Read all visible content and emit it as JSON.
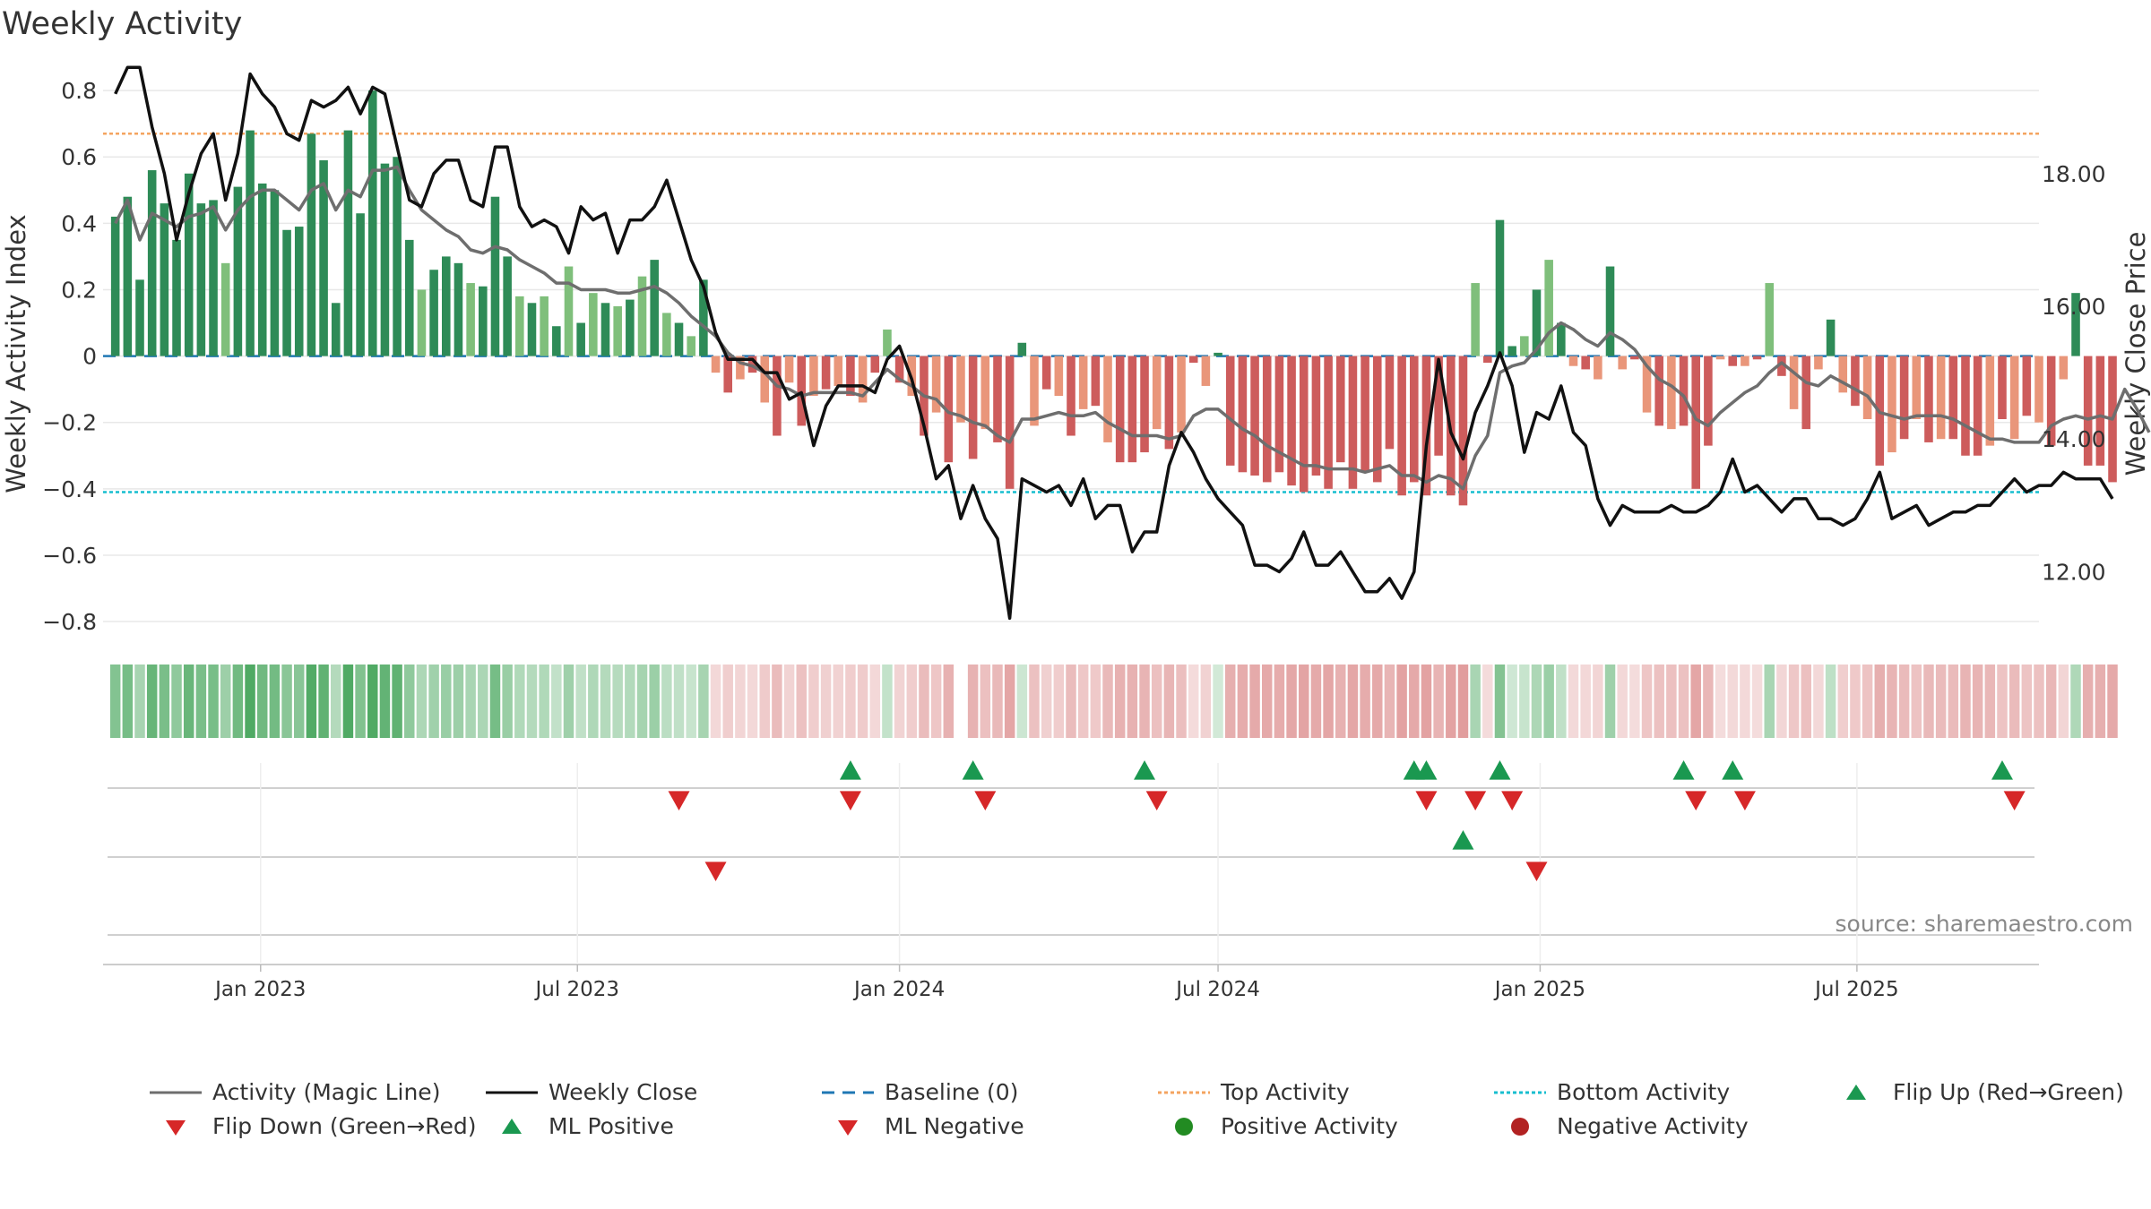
{
  "chart_data": {
    "type": "bar",
    "title": "Weekly Activity",
    "ylabel": "Weekly Activity Index",
    "y2label": "Weekly Close Price",
    "ylim": [
      -0.87,
      0.83
    ],
    "y2lim": [
      10.9,
      19.4
    ],
    "yticks": [
      0.8,
      0.6,
      0.4,
      0.2,
      0,
      -0.2,
      -0.4,
      -0.6,
      -0.8
    ],
    "ytick_labels": [
      "0.8",
      "0.6",
      "0.4",
      "0.2",
      "0",
      "−0.2",
      "−0.4",
      "−0.6",
      "−0.8"
    ],
    "y2ticks": [
      18,
      16,
      14,
      12
    ],
    "y2tick_labels": [
      "18.00",
      "16.00",
      "14.00",
      "12.00"
    ],
    "x_start": "2022-10-03",
    "x_end": "2025-10-13",
    "xticks": [
      {
        "date": "2023-01-01",
        "label": "Jan 2023"
      },
      {
        "date": "2023-07-01",
        "label": "Jul 2023"
      },
      {
        "date": "2024-01-01",
        "label": "Jan 2024"
      },
      {
        "date": "2024-07-01",
        "label": "Jul 2024"
      },
      {
        "date": "2025-01-01",
        "label": "Jan 2025"
      },
      {
        "date": "2025-07-01",
        "label": "Jul 2025"
      }
    ],
    "top_activity": 0.67,
    "bottom_activity": -0.41,
    "baseline": 0,
    "first_week": "2022-10-10",
    "activity": [
      0.42,
      0.48,
      0.23,
      0.56,
      0.46,
      0.35,
      0.55,
      0.46,
      0.47,
      0.28,
      0.51,
      0.68,
      0.52,
      0.5,
      0.38,
      0.39,
      0.67,
      0.59,
      0.16,
      0.68,
      0.43,
      0.8,
      0.58,
      0.6,
      0.35,
      0.2,
      0.26,
      0.3,
      0.28,
      0.22,
      0.21,
      0.48,
      0.3,
      0.18,
      0.16,
      0.18,
      0.09,
      0.27,
      0.1,
      0.19,
      0.16,
      0.15,
      0.17,
      0.24,
      0.29,
      0.13,
      0.1,
      0.06,
      0.23,
      -0.05,
      -0.11,
      -0.07,
      -0.05,
      -0.14,
      -0.24,
      -0.08,
      -0.21,
      -0.12,
      -0.1,
      -0.09,
      -0.12,
      -0.14,
      -0.05,
      0.08,
      -0.08,
      -0.12,
      -0.24,
      -0.17,
      -0.32,
      -0.2,
      -0.31,
      -0.22,
      -0.26,
      -0.4,
      0.04,
      -0.21,
      -0.1,
      -0.12,
      -0.24,
      -0.16,
      -0.15,
      -0.26,
      -0.32,
      -0.32,
      -0.29,
      -0.22,
      -0.28,
      -0.23,
      -0.02,
      -0.09,
      0.01,
      -0.33,
      -0.35,
      -0.36,
      -0.38,
      -0.35,
      -0.39,
      -0.41,
      -0.36,
      -0.4,
      -0.32,
      -0.4,
      -0.35,
      -0.38,
      -0.28,
      -0.42,
      -0.38,
      -0.42,
      -0.3,
      -0.42,
      -0.45,
      0.22,
      -0.02,
      0.41,
      0.03,
      0.06,
      0.2,
      0.29,
      0.1,
      -0.03,
      -0.04,
      -0.07,
      0.27,
      -0.04,
      -0.01,
      -0.17,
      -0.21,
      -0.22,
      -0.21,
      -0.4,
      -0.27,
      -0.01,
      -0.03,
      -0.03,
      -0.01,
      0.22,
      -0.06,
      -0.16,
      -0.22,
      -0.04,
      0.11,
      -0.11,
      -0.15,
      -0.19,
      -0.33,
      -0.29,
      -0.25,
      -0.19,
      -0.26,
      -0.25,
      -0.25,
      -0.3,
      -0.3,
      -0.27,
      -0.19,
      -0.25,
      -0.18,
      -0.2,
      -0.27,
      -0.07,
      0.19,
      -0.33,
      -0.33,
      -0.38
    ],
    "magic_line": [
      0.4,
      0.47,
      0.35,
      0.43,
      0.41,
      0.39,
      0.42,
      0.43,
      0.45,
      0.38,
      0.44,
      0.48,
      0.5,
      0.5,
      0.47,
      0.44,
      0.5,
      0.52,
      0.44,
      0.5,
      0.48,
      0.56,
      0.56,
      0.57,
      0.5,
      0.44,
      0.41,
      0.38,
      0.36,
      0.32,
      0.31,
      0.33,
      0.32,
      0.29,
      0.27,
      0.25,
      0.22,
      0.22,
      0.2,
      0.2,
      0.2,
      0.19,
      0.19,
      0.2,
      0.21,
      0.19,
      0.16,
      0.12,
      0.09,
      0.06,
      0.01,
      -0.02,
      -0.03,
      -0.05,
      -0.09,
      -0.1,
      -0.12,
      -0.11,
      -0.11,
      -0.11,
      -0.11,
      -0.12,
      -0.08,
      -0.04,
      -0.07,
      -0.09,
      -0.12,
      -0.13,
      -0.17,
      -0.18,
      -0.2,
      -0.21,
      -0.24,
      -0.26,
      -0.19,
      -0.19,
      -0.18,
      -0.17,
      -0.18,
      -0.18,
      -0.17,
      -0.2,
      -0.22,
      -0.24,
      -0.24,
      -0.24,
      -0.25,
      -0.24,
      -0.18,
      -0.16,
      -0.16,
      -0.19,
      -0.22,
      -0.24,
      -0.27,
      -0.29,
      -0.31,
      -0.33,
      -0.33,
      -0.34,
      -0.34,
      -0.34,
      -0.35,
      -0.34,
      -0.33,
      -0.36,
      -0.36,
      -0.38,
      -0.36,
      -0.37,
      -0.4,
      -0.3,
      -0.24,
      -0.05,
      -0.03,
      -0.02,
      0.02,
      0.07,
      0.1,
      0.08,
      0.05,
      0.03,
      0.07,
      0.05,
      0.02,
      -0.03,
      -0.07,
      -0.09,
      -0.12,
      -0.19,
      -0.21,
      -0.17,
      -0.14,
      -0.11,
      -0.09,
      -0.05,
      -0.02,
      -0.05,
      -0.08,
      -0.09,
      -0.06,
      -0.08,
      -0.1,
      -0.12,
      -0.17,
      -0.18,
      -0.19,
      -0.18,
      -0.18,
      -0.18,
      -0.19,
      -0.21,
      -0.23,
      -0.25,
      -0.25,
      -0.26,
      -0.26,
      -0.26,
      -0.21,
      -0.19,
      -0.18,
      -0.19,
      -0.18,
      -0.19,
      -0.1,
      -0.16,
      -0.23
    ],
    "weekly_close": [
      19.2,
      19.6,
      19.6,
      18.7,
      18.0,
      17.0,
      17.7,
      18.3,
      18.6,
      17.6,
      18.3,
      19.5,
      19.2,
      19.0,
      18.6,
      18.5,
      19.1,
      19.0,
      19.1,
      19.3,
      18.9,
      19.3,
      19.2,
      18.4,
      17.6,
      17.5,
      18.0,
      18.2,
      18.2,
      17.6,
      17.5,
      18.4,
      18.4,
      17.5,
      17.2,
      17.3,
      17.2,
      16.8,
      17.5,
      17.3,
      17.4,
      16.8,
      17.3,
      17.3,
      17.5,
      17.9,
      17.3,
      16.7,
      16.3,
      15.6,
      15.2,
      15.2,
      15.2,
      15.0,
      15.0,
      14.6,
      14.7,
      13.9,
      14.5,
      14.8,
      14.8,
      14.8,
      14.7,
      15.2,
      15.4,
      14.9,
      14.2,
      13.4,
      13.6,
      12.8,
      13.3,
      12.8,
      12.5,
      11.3,
      13.4,
      13.3,
      13.2,
      13.3,
      13.0,
      13.4,
      12.8,
      13.0,
      13.0,
      12.3,
      12.6,
      12.6,
      13.6,
      14.1,
      13.8,
      13.4,
      13.1,
      12.9,
      12.7,
      12.1,
      12.1,
      12.0,
      12.2,
      12.6,
      12.1,
      12.1,
      12.3,
      12.0,
      11.7,
      11.7,
      11.9,
      11.6,
      12.0,
      13.9,
      15.2,
      14.1,
      13.7,
      14.4,
      14.8,
      15.3,
      14.8,
      13.8,
      14.4,
      14.3,
      14.8,
      14.1,
      13.9,
      13.1,
      12.7,
      13.0,
      12.9,
      12.9,
      12.9,
      13.0,
      12.9,
      12.9,
      13.0,
      13.2,
      13.7,
      13.2,
      13.3,
      13.1,
      12.9,
      13.1,
      13.1,
      12.8,
      12.8,
      12.7,
      12.8,
      13.1,
      13.5,
      12.8,
      12.9,
      13.0,
      12.7,
      12.8,
      12.9,
      12.9,
      13.0,
      13.0,
      13.2,
      13.4,
      13.2,
      13.3,
      13.3,
      13.5,
      13.4,
      13.4,
      13.4,
      13.1
    ],
    "gap_weeks": [
      1,
      18
    ],
    "flip_up": [
      "2023-12-04",
      "2024-02-12",
      "2024-05-20",
      "2024-10-21",
      "2024-10-28",
      "2024-12-09",
      "2025-03-24",
      "2025-04-21",
      "2025-09-22"
    ],
    "flip_down": [
      "2023-08-28",
      "2023-12-04",
      "2024-02-19",
      "2024-05-27",
      "2024-10-28",
      "2024-11-25",
      "2024-12-16",
      "2025-03-31",
      "2025-04-28",
      "2025-09-29"
    ],
    "ml_positive": [
      "2024-11-18"
    ],
    "ml_negative": [
      "2023-09-18",
      "2024-12-30"
    ],
    "positive_activity": [],
    "negative_activity": [],
    "source": "source: sharemaestro.com",
    "legend": [
      {
        "key": "magic",
        "label": "Activity (Magic Line)"
      },
      {
        "key": "close",
        "label": "Weekly Close"
      },
      {
        "key": "baseline",
        "label": "Baseline (0)"
      },
      {
        "key": "top",
        "label": "Top Activity"
      },
      {
        "key": "bottom",
        "label": "Bottom Activity"
      },
      {
        "key": "flipup",
        "label": "Flip Up (Red→Green)"
      },
      {
        "key": "flipdown",
        "label": "Flip Down (Green→Red)"
      },
      {
        "key": "mlpos",
        "label": "ML Positive"
      },
      {
        "key": "mlneg",
        "label": "ML Negative"
      },
      {
        "key": "posact",
        "label": "Positive Activity"
      },
      {
        "key": "negact",
        "label": "Negative Activity"
      }
    ]
  },
  "colors": {
    "green_dark": "#2e8b57",
    "green_light": "#7fbf7b",
    "red_dark": "#cd5c5c",
    "red_light": "#e9967a",
    "magic": "#6e6e6e",
    "close": "#111111",
    "baseline": "#1f77b4",
    "top": "#f4a460",
    "bottom": "#17becf",
    "marker_green": "#1a9850",
    "marker_red": "#d62728",
    "pos_dot": "#228b22",
    "neg_dot": "#b22222",
    "grid": "#e8e8e8"
  }
}
